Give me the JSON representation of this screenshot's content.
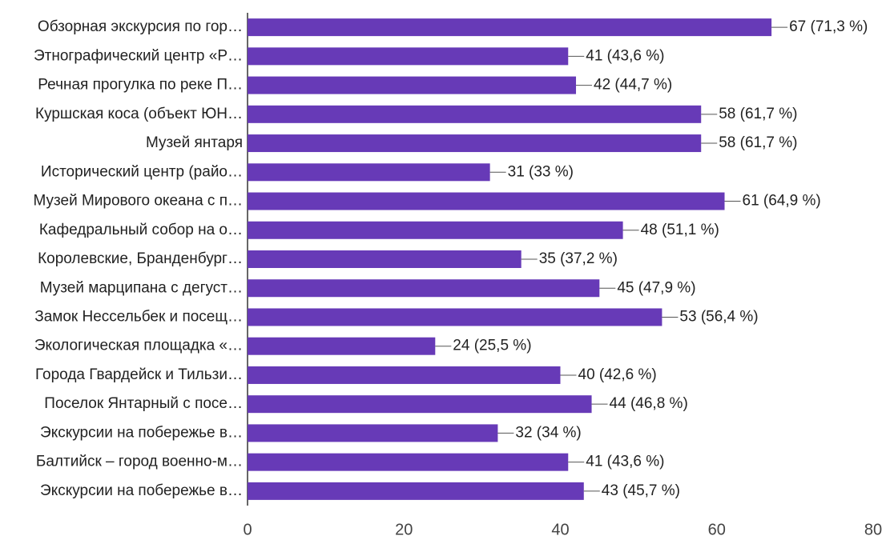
{
  "chart_data": {
    "type": "bar",
    "orientation": "horizontal",
    "categories": [
      "Обзорная экскурсия по гор…",
      "Этнографический центр «Р…",
      "Речная прогулка по реке П…",
      "Куршская коса (объект ЮН…",
      "Музей янтаря",
      "Исторический центр (райо…",
      "Музей Мирового океана с п…",
      "Кафедральный собор на о…",
      "Королевские, Бранденбург…",
      "Музей марципана с дегуст…",
      "Замок Нессельбек и посещ…",
      "Экологическая площадка «…",
      "Города Гвардейск и Тильзи…",
      "Поселок Янтарный с посе…",
      "Экскурсии на побережье в…",
      "Балтийск – город военно-м…",
      "Экскурсии на побережье в…"
    ],
    "values": [
      67,
      41,
      42,
      58,
      58,
      31,
      61,
      48,
      35,
      45,
      53,
      24,
      40,
      44,
      32,
      41,
      43
    ],
    "value_labels": [
      "67 (71,3 %)",
      "41 (43,6 %)",
      "42 (44,7 %)",
      "58 (61,7 %)",
      "58 (61,7 %)",
      "31 (33 %)",
      "61 (64,9 %)",
      "48 (51,1 %)",
      "35 (37,2 %)",
      "45 (47,9 %)",
      "53 (56,4 %)",
      "24 (25,5 %)",
      "40 (42,6 %)",
      "44 (46,8 %)",
      "32 (34 %)",
      "41 (43,6 %)",
      "43 (45,7 %)"
    ],
    "color": "#673ab7",
    "xlim": [
      0,
      80
    ],
    "xticks": [
      0,
      20,
      40,
      60,
      80
    ],
    "grid": false
  }
}
